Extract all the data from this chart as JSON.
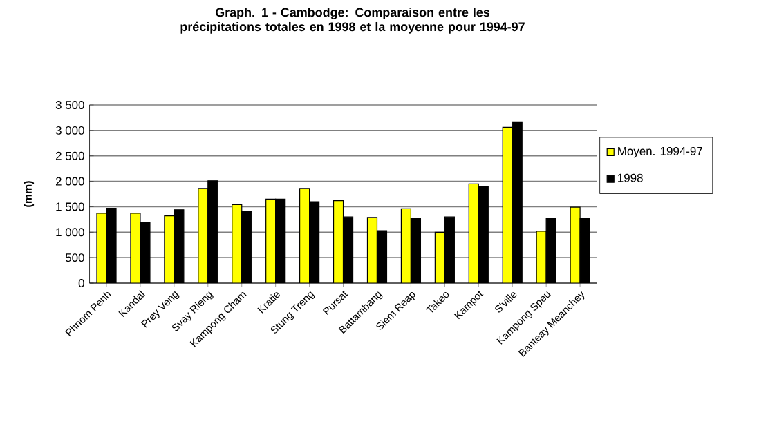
{
  "chart_data": {
    "type": "bar",
    "title": "Graph. 1 - Cambodge: Comparaison entre les précipitations totales en 1998 et la moyenne pour 1994-97",
    "ylabel": "(mm)",
    "categories": [
      "Phnom Penh",
      "Kandal",
      "Prey Veng",
      "Svay Rieng",
      "Kampong Cham",
      "Kratie",
      "Stung Treng",
      "Pursat",
      "Battambang",
      "Siem Reap",
      "Takeo",
      "Kampot",
      "S'ville",
      "Kampong Speu",
      "Banteay Meanchey"
    ],
    "series": [
      {
        "name": "Moyen. 1994-97",
        "color": "#ffff00",
        "values": [
          1370,
          1370,
          1320,
          1860,
          1540,
          1650,
          1860,
          1620,
          1290,
          1460,
          1000,
          1950,
          3060,
          1020,
          1490
        ]
      },
      {
        "name": "1998",
        "color": "#000000",
        "values": [
          1470,
          1190,
          1440,
          2010,
          1410,
          1650,
          1600,
          1300,
          1030,
          1270,
          1300,
          1900,
          3170,
          1270,
          1270
        ]
      }
    ],
    "ylim": [
      0,
      3500
    ],
    "yticks": [
      0,
      {
        "value": 500,
        "label": "500"
      },
      {
        "value": 1000,
        "label": "1 000"
      },
      {
        "value": 1500,
        "label": "1 500"
      },
      {
        "value": 2000,
        "label": "2 000"
      },
      {
        "value": 2500,
        "label": "2 500"
      },
      {
        "value": 3000,
        "label": "3 000"
      },
      {
        "value": 3500,
        "label": "3 500"
      }
    ],
    "grid": "y",
    "legend": "right"
  }
}
